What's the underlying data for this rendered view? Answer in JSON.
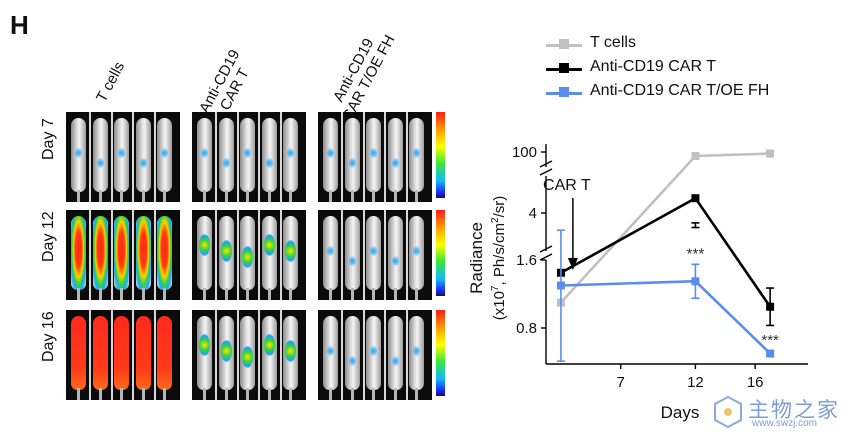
{
  "panel_letter": "H",
  "image_columns": [
    {
      "label_lines": [
        "T cells"
      ]
    },
    {
      "label_lines": [
        "Anti-CD19",
        "CAR T"
      ]
    },
    {
      "label_lines": [
        "Anti-CD19",
        "CAR T/OE FH"
      ]
    }
  ],
  "image_rows": [
    "Day 7",
    "Day 12",
    "Day 16"
  ],
  "watermark": {
    "text": "主物之家",
    "sub": "www.swzj.com"
  },
  "colors": {
    "t_cells": "#c0c0c0",
    "car_t": "#000000",
    "car_t_oe_fh": "#5b8def"
  },
  "chart_data": {
    "type": "line",
    "xlabel": "Days",
    "ylabel": "Radiance",
    "ylabel_units": {
      "prefix": "(x10",
      "exp": "7",
      "mid": ", Ph/s/cm",
      "exp2": "2",
      "suffix": "/sr)"
    },
    "xticks": [
      7,
      12,
      16
    ],
    "y_segments": [
      {
        "name": "lower",
        "range": [
          0.4,
          1.6
        ],
        "ticks": [
          0.8,
          1.6
        ]
      },
      {
        "name": "middle",
        "range": [
          2.5,
          5.5
        ],
        "ticks": [
          4
        ]
      },
      {
        "name": "upper",
        "range": [
          80,
          105
        ],
        "ticks": [
          100
        ]
      }
    ],
    "y_scale": "broken",
    "xlim": [
      2,
      19
    ],
    "annotation": {
      "text": "CAR T",
      "x": 3.8
    },
    "series": [
      {
        "name": "T cells",
        "key": "t_cells",
        "x": [
          3,
          12,
          17
        ],
        "y": [
          1.1,
          95,
          98
        ],
        "err": [
          0,
          0,
          4
        ],
        "labels": [
          "",
          "",
          ""
        ]
      },
      {
        "name": "Anti-CD19 CAR T",
        "key": "car_t",
        "x": [
          3,
          12,
          17
        ],
        "y": [
          1.45,
          4.6,
          1.05
        ],
        "err": [
          0,
          1.0,
          0.22
        ],
        "labels": [
          "",
          "",
          ""
        ]
      },
      {
        "name": "Anti-CD19 CAR T/OE FH",
        "key": "car_t_oe_fh",
        "x": [
          3,
          12,
          17
        ],
        "y": [
          1.3,
          1.35,
          0.5
        ],
        "err": [
          0.95,
          0.2,
          0.03
        ],
        "labels": [
          "",
          "***",
          "***"
        ]
      }
    ]
  }
}
